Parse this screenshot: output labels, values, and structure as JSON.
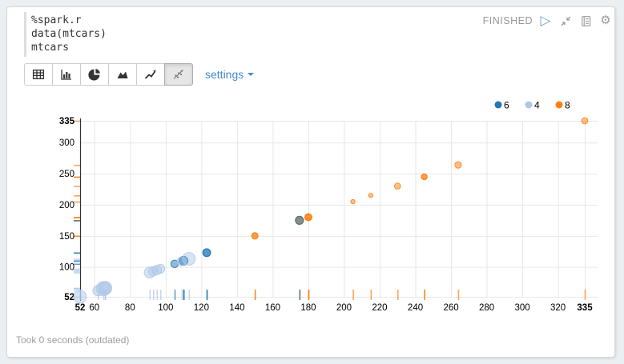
{
  "paragraph": {
    "code_lines": [
      "%spark.r",
      "data(mtcars)",
      "mtcars"
    ],
    "footer": "Took 0 seconds (outdated)"
  },
  "status_bar": {
    "status": "FINISHED",
    "run_glyph": "▷",
    "gear_glyph": "⚙",
    "icons": [
      "run-icon",
      "compress-icon",
      "editor-book-icon",
      "gear-icon"
    ]
  },
  "toolbar": {
    "settings_label": "settings",
    "buttons": [
      "table",
      "bar-chart",
      "pie-chart",
      "area-chart",
      "line-chart",
      "scatter-chart"
    ],
    "active_button": "scatter-chart"
  },
  "chart_data": {
    "type": "scatter",
    "xlim": [
      52,
      335
    ],
    "ylim": [
      52,
      335
    ],
    "x_ticks": [
      52,
      60,
      80,
      100,
      120,
      140,
      160,
      180,
      200,
      220,
      240,
      260,
      280,
      300,
      320,
      335
    ],
    "y_ticks": [
      52,
      100,
      150,
      200,
      250,
      300,
      335
    ],
    "bold_ticks": [
      52,
      335
    ],
    "grid": true,
    "legend_position": "top-right",
    "legend": [
      {
        "label": "6",
        "color": "#1f77b4"
      },
      {
        "label": "4",
        "color": "#aec7e8"
      },
      {
        "label": "8",
        "color": "#ff7f0e"
      }
    ],
    "points": [
      {
        "x": 110,
        "y": 110,
        "group": "6",
        "size": 21.0
      },
      {
        "x": 110,
        "y": 110,
        "group": "6",
        "size": 21.0
      },
      {
        "x": 93,
        "y": 93,
        "group": "4",
        "size": 22.8
      },
      {
        "x": 110,
        "y": 110,
        "group": "6",
        "size": 21.4
      },
      {
        "x": 175,
        "y": 175,
        "group": "8",
        "size": 18.7
      },
      {
        "x": 105,
        "y": 105,
        "group": "6",
        "size": 18.1
      },
      {
        "x": 245,
        "y": 245,
        "group": "8",
        "size": 14.3
      },
      {
        "x": 62,
        "y": 62,
        "group": "4",
        "size": 24.4
      },
      {
        "x": 95,
        "y": 95,
        "group": "4",
        "size": 22.8
      },
      {
        "x": 123,
        "y": 123,
        "group": "6",
        "size": 19.2
      },
      {
        "x": 123,
        "y": 123,
        "group": "6",
        "size": 17.8
      },
      {
        "x": 180,
        "y": 180,
        "group": "8",
        "size": 16.4
      },
      {
        "x": 180,
        "y": 180,
        "group": "8",
        "size": 17.3
      },
      {
        "x": 180,
        "y": 180,
        "group": "8",
        "size": 15.2
      },
      {
        "x": 205,
        "y": 205,
        "group": "8",
        "size": 10.4
      },
      {
        "x": 215,
        "y": 215,
        "group": "8",
        "size": 10.4
      },
      {
        "x": 230,
        "y": 230,
        "group": "8",
        "size": 14.7
      },
      {
        "x": 66,
        "y": 66,
        "group": "4",
        "size": 32.4
      },
      {
        "x": 52,
        "y": 52,
        "group": "4",
        "size": 30.4
      },
      {
        "x": 65,
        "y": 65,
        "group": "4",
        "size": 33.9
      },
      {
        "x": 97,
        "y": 97,
        "group": "4",
        "size": 21.5
      },
      {
        "x": 150,
        "y": 150,
        "group": "8",
        "size": 15.5
      },
      {
        "x": 150,
        "y": 150,
        "group": "8",
        "size": 15.2
      },
      {
        "x": 245,
        "y": 245,
        "group": "8",
        "size": 13.3
      },
      {
        "x": 175,
        "y": 175,
        "group": "8",
        "size": 19.2
      },
      {
        "x": 66,
        "y": 66,
        "group": "4",
        "size": 27.3
      },
      {
        "x": 91,
        "y": 91,
        "group": "4",
        "size": 26.0
      },
      {
        "x": 113,
        "y": 113,
        "group": "4",
        "size": 30.4
      },
      {
        "x": 264,
        "y": 264,
        "group": "8",
        "size": 15.8
      },
      {
        "x": 175,
        "y": 175,
        "group": "6",
        "size": 19.7
      },
      {
        "x": 335,
        "y": 335,
        "group": "8",
        "size": 15.0
      },
      {
        "x": 109,
        "y": 109,
        "group": "4",
        "size": 21.4
      }
    ]
  },
  "colors": {
    "accent_link": "#428bca",
    "status_text": "#999999",
    "grid": "#e7e7e7",
    "group_6": "#1f77b4",
    "group_4": "#aec7e8",
    "group_8": "#ff7f0e"
  }
}
